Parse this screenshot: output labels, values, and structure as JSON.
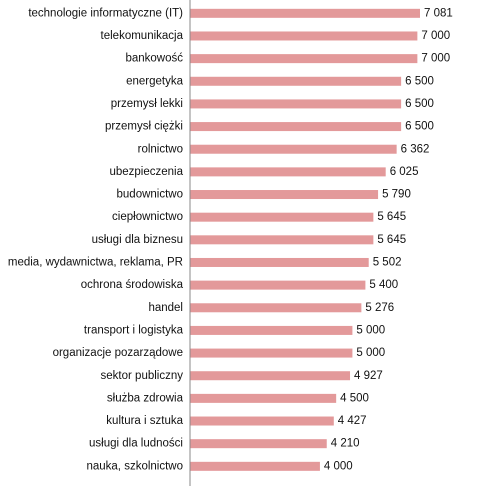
{
  "chart_data": {
    "type": "hbar",
    "color": "#e3999a",
    "categories": [
      "technologie informatyczne (IT)",
      "telekomunikacja",
      "bankowość",
      "energetyka",
      "przemysł lekki",
      "przemysł ciężki",
      "rolnictwo",
      "ubezpieczenia",
      "budownictwo",
      "ciepłownictwo",
      "usługi dla biznesu",
      "media, wydawnictwa, reklama, PR",
      "ochrona środowiska",
      "handel",
      "transport i logistyka",
      "organizacje pozarządowe",
      "sektor publiczny",
      "służba zdrowia",
      "kultura i sztuka",
      "usługi dla ludności",
      "nauka, szkolnictwo"
    ],
    "values": [
      7081,
      7000,
      7000,
      6500,
      6500,
      6500,
      6362,
      6025,
      5790,
      5645,
      5645,
      5502,
      5400,
      5276,
      5000,
      5000,
      4927,
      4500,
      4427,
      4210,
      4000
    ],
    "value_labels": [
      "7 081",
      "7 000",
      "7 000",
      "6 500",
      "6 500",
      "6 500",
      "6 362",
      "6 025",
      "5 790",
      "5 645",
      "5 645",
      "5 502",
      "5 400",
      "5 276",
      "5 000",
      "5 000",
      "4 927",
      "4 500",
      "4 427",
      "4 210",
      "4 000"
    ]
  }
}
